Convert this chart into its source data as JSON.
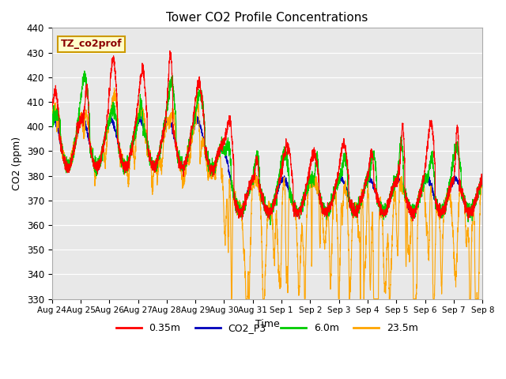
{
  "title": "Tower CO2 Profile Concentrations",
  "xlabel": "Time",
  "ylabel": "CO2 (ppm)",
  "ylim": [
    330,
    440
  ],
  "annotation_text": "TZ_co2prof",
  "background_color": "#e8e8e8",
  "line_colors": {
    "0.35m": "#ff0000",
    "CO2_P3": "#0000bb",
    "6.0m": "#00cc00",
    "23.5m": "#ffa500"
  },
  "xtick_labels": [
    "Aug 24",
    "Aug 25",
    "Aug 26",
    "Aug 27",
    "Aug 28",
    "Aug 29",
    "Aug 30",
    "Aug 31",
    "Sep 1",
    "Sep 2",
    "Sep 3",
    "Sep 4",
    "Sep 5",
    "Sep 6",
    "Sep 7",
    "Sep 8"
  ],
  "ytick_values": [
    330,
    340,
    350,
    360,
    370,
    380,
    390,
    400,
    410,
    420,
    430,
    440
  ],
  "n_points": 3600,
  "seed": 42,
  "figsize": [
    6.4,
    4.8
  ],
  "dpi": 100
}
